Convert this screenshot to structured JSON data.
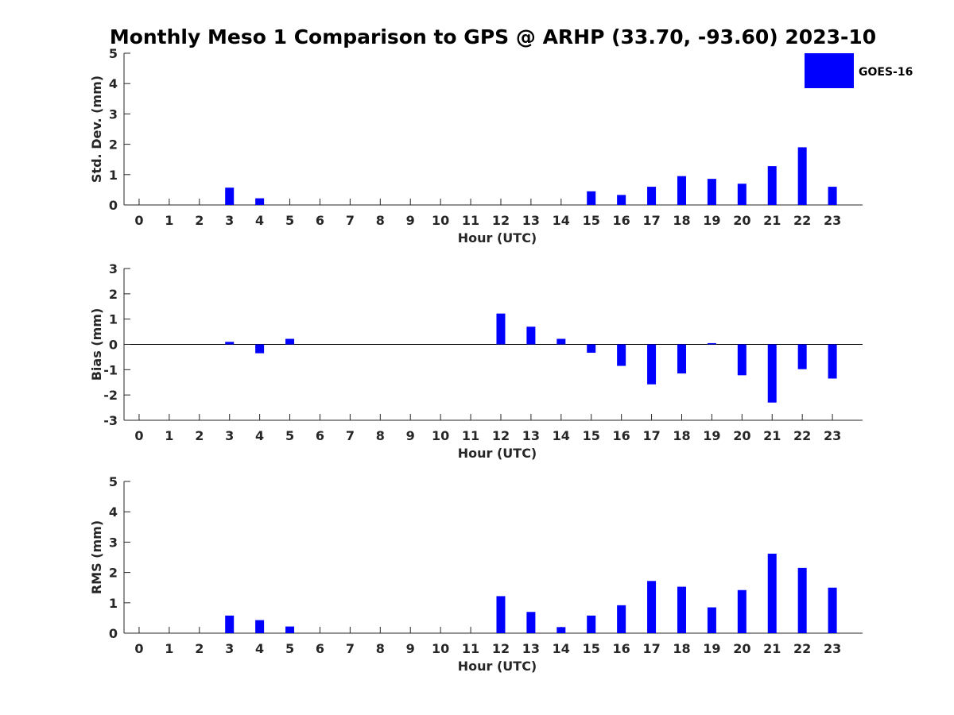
{
  "title": "Monthly Meso 1 Comparison to GPS @ ARHP (33.70, -93.60) 2023-10",
  "legend": {
    "label": "GOES-16",
    "color": "#0000ff",
    "placement": "top-right"
  },
  "chart_data": [
    {
      "type": "bar",
      "name": "std-dev",
      "ylabel": "Std. Dev. (mm)",
      "xlabel": "Hour (UTC)",
      "ylim": [
        0,
        5
      ],
      "yticks": [
        "0",
        "1",
        "2",
        "3",
        "4",
        "5"
      ],
      "categories": [
        "0",
        "1",
        "2",
        "3",
        "4",
        "5",
        "6",
        "7",
        "8",
        "9",
        "10",
        "11",
        "12",
        "13",
        "14",
        "15",
        "16",
        "17",
        "18",
        "19",
        "20",
        "21",
        "22",
        "23"
      ],
      "values": [
        null,
        null,
        null,
        0.57,
        0.22,
        null,
        null,
        null,
        null,
        null,
        null,
        null,
        null,
        null,
        null,
        0.45,
        0.33,
        0.6,
        0.95,
        0.86,
        0.7,
        1.28,
        1.9,
        0.6
      ],
      "series": [
        {
          "name": "GOES-16",
          "color": "#0000ff"
        }
      ]
    },
    {
      "type": "bar",
      "name": "bias",
      "ylabel": "Bias (mm)",
      "xlabel": "Hour (UTC)",
      "ylim": [
        -3,
        3
      ],
      "yticks": [
        "-3",
        "-2",
        "-1",
        "0",
        "1",
        "2",
        "3"
      ],
      "zero_line": true,
      "categories": [
        "0",
        "1",
        "2",
        "3",
        "4",
        "5",
        "6",
        "7",
        "8",
        "9",
        "10",
        "11",
        "12",
        "13",
        "14",
        "15",
        "16",
        "17",
        "18",
        "19",
        "20",
        "21",
        "22",
        "23"
      ],
      "values": [
        null,
        null,
        null,
        0.1,
        -0.35,
        0.22,
        null,
        null,
        null,
        null,
        null,
        null,
        1.22,
        0.7,
        0.22,
        -0.33,
        -0.85,
        -1.58,
        -1.15,
        0.05,
        -1.22,
        -2.3,
        -0.98,
        -1.35
      ],
      "series": [
        {
          "name": "GOES-16",
          "color": "#0000ff"
        }
      ]
    },
    {
      "type": "bar",
      "name": "rms",
      "ylabel": "RMS (mm)",
      "xlabel": "Hour (UTC)",
      "ylim": [
        0,
        5
      ],
      "yticks": [
        "0",
        "1",
        "2",
        "3",
        "4",
        "5"
      ],
      "categories": [
        "0",
        "1",
        "2",
        "3",
        "4",
        "5",
        "6",
        "7",
        "8",
        "9",
        "10",
        "11",
        "12",
        "13",
        "14",
        "15",
        "16",
        "17",
        "18",
        "19",
        "20",
        "21",
        "22",
        "23"
      ],
      "values": [
        null,
        null,
        null,
        0.58,
        0.43,
        0.22,
        null,
        null,
        null,
        null,
        null,
        null,
        1.22,
        0.7,
        0.2,
        0.58,
        0.92,
        1.72,
        1.53,
        0.85,
        1.42,
        2.62,
        2.15,
        1.5
      ],
      "series": [
        {
          "name": "GOES-16",
          "color": "#0000ff"
        }
      ]
    }
  ]
}
